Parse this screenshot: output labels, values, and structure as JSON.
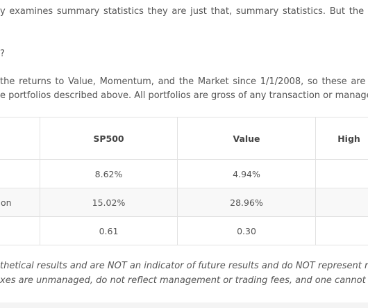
{
  "article": {
    "lines": [
      "y examines summary statistics they are just that, summary statistics. But the",
      "?",
      "the returns to Value, Momentum, and the Market since 1/1/2008, so these are th",
      "e portfolios described above. All portfolios are gross of any transaction or managem"
    ],
    "disclaimer": [
      "thetical results and are NOT an indicator of future results and do NOT represent returns",
      "xes are unmanaged, do not reflect management or trading fees, and one cannot invest d"
    ]
  },
  "table": {
    "columns": [
      "",
      "SP500",
      "Value",
      "High"
    ],
    "rows": [
      {
        "label": "",
        "sp500": "8.62%",
        "value": "4.94%",
        "high": ""
      },
      {
        "label": "on",
        "sp500": "15.02%",
        "value": "28.96%",
        "high": ""
      },
      {
        "label": "",
        "sp500": "0.61",
        "value": "0.30",
        "high": ""
      }
    ]
  }
}
